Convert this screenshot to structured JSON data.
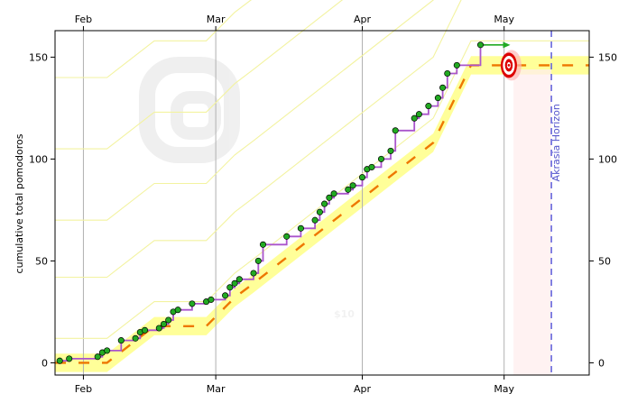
{
  "chart_data": {
    "type": "line",
    "title": "",
    "xlabel": "",
    "ylabel": "cumulative total pomodoros",
    "x_tick_labels": [
      "Feb",
      "Mar",
      "Apr",
      "May"
    ],
    "x_tick_dates": [
      "2013-02-01",
      "2013-03-01",
      "2013-04-01",
      "2013-05-01"
    ],
    "xlim": [
      "2013-01-26",
      "2013-05-19"
    ],
    "y_ticks": [
      0,
      50,
      100,
      150
    ],
    "ylim": [
      -6,
      163
    ],
    "grid": "vertical at month starts",
    "series": [],
    "datapoints": [
      [
        "2013-01-27",
        1
      ],
      [
        "2013-01-29",
        2
      ],
      [
        "2013-02-04",
        3
      ],
      [
        "2013-02-05",
        5
      ],
      [
        "2013-02-06",
        6
      ],
      [
        "2013-02-09",
        11
      ],
      [
        "2013-02-12",
        12
      ],
      [
        "2013-02-13",
        15
      ],
      [
        "2013-02-14",
        16
      ],
      [
        "2013-02-17",
        17
      ],
      [
        "2013-02-18",
        19
      ],
      [
        "2013-02-19",
        21
      ],
      [
        "2013-02-20",
        25
      ],
      [
        "2013-02-21",
        26
      ],
      [
        "2013-02-24",
        29
      ],
      [
        "2013-02-27",
        30
      ],
      [
        "2013-02-28",
        31
      ],
      [
        "2013-03-03",
        33
      ],
      [
        "2013-03-04",
        37
      ],
      [
        "2013-03-05",
        39
      ],
      [
        "2013-03-06",
        41
      ],
      [
        "2013-03-09",
        44
      ],
      [
        "2013-03-10",
        50
      ],
      [
        "2013-03-11",
        58
      ],
      [
        "2013-03-16",
        62
      ],
      [
        "2013-03-19",
        66
      ],
      [
        "2013-03-22",
        70
      ],
      [
        "2013-03-23",
        74
      ],
      [
        "2013-03-24",
        78
      ],
      [
        "2013-03-25",
        81
      ],
      [
        "2013-03-26",
        83
      ],
      [
        "2013-03-29",
        85
      ],
      [
        "2013-03-30",
        87
      ],
      [
        "2013-04-01",
        91
      ],
      [
        "2013-04-02",
        95
      ],
      [
        "2013-04-03",
        96
      ],
      [
        "2013-04-05",
        100
      ],
      [
        "2013-04-07",
        104
      ],
      [
        "2013-04-08",
        114
      ],
      [
        "2013-04-12",
        120
      ],
      [
        "2013-04-13",
        122
      ],
      [
        "2013-04-15",
        126
      ],
      [
        "2013-04-17",
        130
      ],
      [
        "2013-04-18",
        135
      ],
      [
        "2013-04-19",
        142
      ],
      [
        "2013-04-21",
        146
      ],
      [
        "2013-04-26",
        156
      ]
    ],
    "road_centerline": [
      [
        "2013-01-26",
        0
      ],
      [
        "2013-02-06",
        0
      ],
      [
        "2013-02-16",
        18
      ],
      [
        "2013-02-20",
        18
      ],
      [
        "2013-02-27",
        18
      ],
      [
        "2013-03-05",
        32
      ],
      [
        "2013-03-09",
        39
      ],
      [
        "2013-04-16",
        108
      ],
      [
        "2013-04-24",
        146
      ],
      [
        "2013-05-19",
        146
      ]
    ],
    "road_halfwidth": 4.5,
    "guide_line_offsets": [
      12,
      42,
      70,
      105,
      140
    ],
    "today_date": "2013-04-27",
    "goal_date": "2013-05-02",
    "goal_value": 146,
    "akrasia_horizon_date": "2013-05-11",
    "annotations": [
      "Akrasia Horizon"
    ],
    "watermarks": [
      "$10"
    ],
    "colors": {
      "road": "#ffff99",
      "centerline": "#ee7700",
      "guide": "#f3f3a0",
      "steps": "#aa55cc",
      "dot_on_road": "#22aa22",
      "dot_off_road": "#3355ee",
      "horizon": "#6666dd",
      "goal_red": "#dd0000",
      "grid": "#b0b0b0"
    }
  }
}
